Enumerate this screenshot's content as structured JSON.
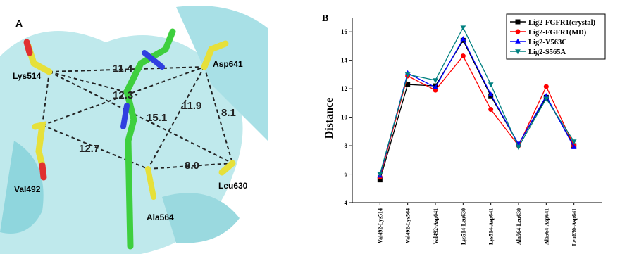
{
  "panel_a": {
    "label": "A",
    "residues": [
      "Lys514",
      "Asp641",
      "Val492",
      "Leu630",
      "Ala564"
    ],
    "distances": [
      "11.4",
      "12.3",
      "15.1",
      "11.9",
      "8.1",
      "12.7",
      "8.0"
    ]
  },
  "chart_data": {
    "type": "line",
    "panel_label": "B",
    "ylabel": "Distance",
    "categories": [
      "Val492-Lys514",
      "Val492-Lys564",
      "Val492-Asp641",
      "Lys514-Leu630",
      "Lys514-Asp641",
      "Ala564-Leu630",
      "Ala564-Asp641",
      "Leu630-Asp641"
    ],
    "series": [
      {
        "name": "Lig2-FGFR1(crystal)",
        "color": "#000000",
        "marker": "square",
        "values": [
          5.6,
          12.3,
          12.2,
          15.4,
          11.5,
          8.1,
          11.4,
          8.0
        ]
      },
      {
        "name": "Lig2-FGFR1(MD)",
        "color": "#ff0000",
        "marker": "circle",
        "values": [
          5.8,
          12.9,
          11.9,
          14.3,
          10.55,
          8.0,
          12.15,
          8.0
        ]
      },
      {
        "name": "Lig2-Y563C",
        "color": "#0000ff",
        "marker": "triangle",
        "values": [
          5.9,
          13.1,
          12.1,
          15.5,
          11.6,
          8.1,
          11.5,
          7.9
        ]
      },
      {
        "name": "Lig2-S565A",
        "color": "#008080",
        "marker": "triangle-down",
        "values": [
          6.0,
          13.0,
          12.6,
          16.3,
          12.3,
          7.9,
          11.3,
          8.3
        ]
      }
    ],
    "ylim": [
      4,
      17
    ],
    "yticks": [
      4,
      6,
      8,
      10,
      12,
      14,
      16
    ],
    "legend": "upper right",
    "grid": false
  }
}
